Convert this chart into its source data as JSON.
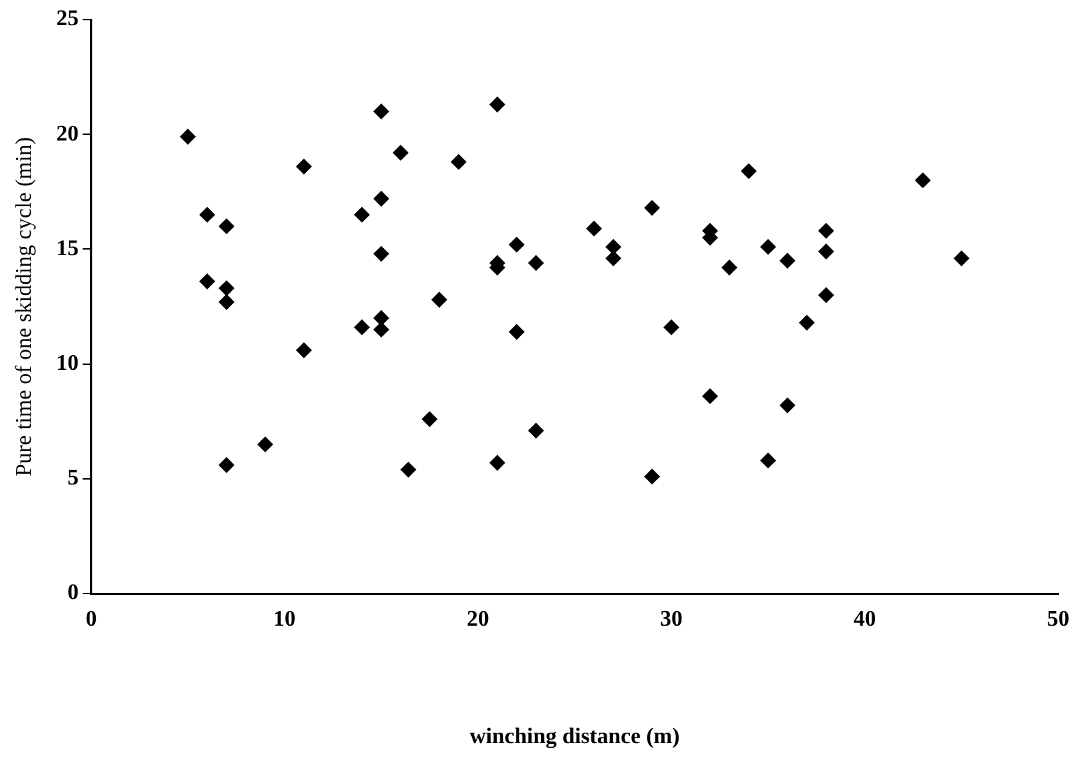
{
  "chart_data": {
    "type": "scatter",
    "xlabel": "winching distance (m)",
    "ylabel": "Pure time of one skidding cycle (min)",
    "xlim": [
      0,
      50
    ],
    "xticks": [
      0,
      10,
      20,
      30,
      40,
      50
    ],
    "ylim": [
      0,
      25
    ],
    "yticks": [
      0,
      5,
      10,
      15,
      20,
      25
    ],
    "grid": false,
    "legend": false,
    "marker": "diamond",
    "series": [
      {
        "color": "#000000",
        "x": [
          5,
          6,
          6,
          7,
          7,
          7,
          7,
          9,
          11,
          11,
          14,
          14,
          15,
          15,
          15,
          15,
          15,
          16,
          16.4,
          17.5,
          18,
          19,
          21,
          21,
          21,
          21,
          22,
          22,
          23,
          23,
          26,
          27,
          27,
          29,
          29,
          30,
          32,
          32,
          32,
          33,
          34,
          35,
          35,
          36,
          36,
          37,
          38,
          38,
          38,
          43,
          45
        ],
        "values": [
          19.9,
          16.5,
          13.6,
          16.0,
          13.3,
          12.7,
          5.6,
          6.5,
          18.6,
          10.6,
          16.5,
          11.6,
          21.0,
          17.2,
          14.8,
          12.0,
          11.5,
          19.2,
          5.4,
          7.6,
          12.8,
          18.8,
          21.3,
          14.4,
          14.2,
          5.7,
          15.2,
          11.4,
          14.4,
          7.1,
          15.9,
          15.1,
          14.6,
          16.8,
          5.1,
          11.6,
          15.8,
          15.5,
          8.6,
          14.2,
          18.4,
          15.1,
          5.8,
          14.5,
          8.2,
          11.8,
          15.8,
          14.9,
          13.0,
          18.0,
          14.6
        ]
      }
    ]
  }
}
